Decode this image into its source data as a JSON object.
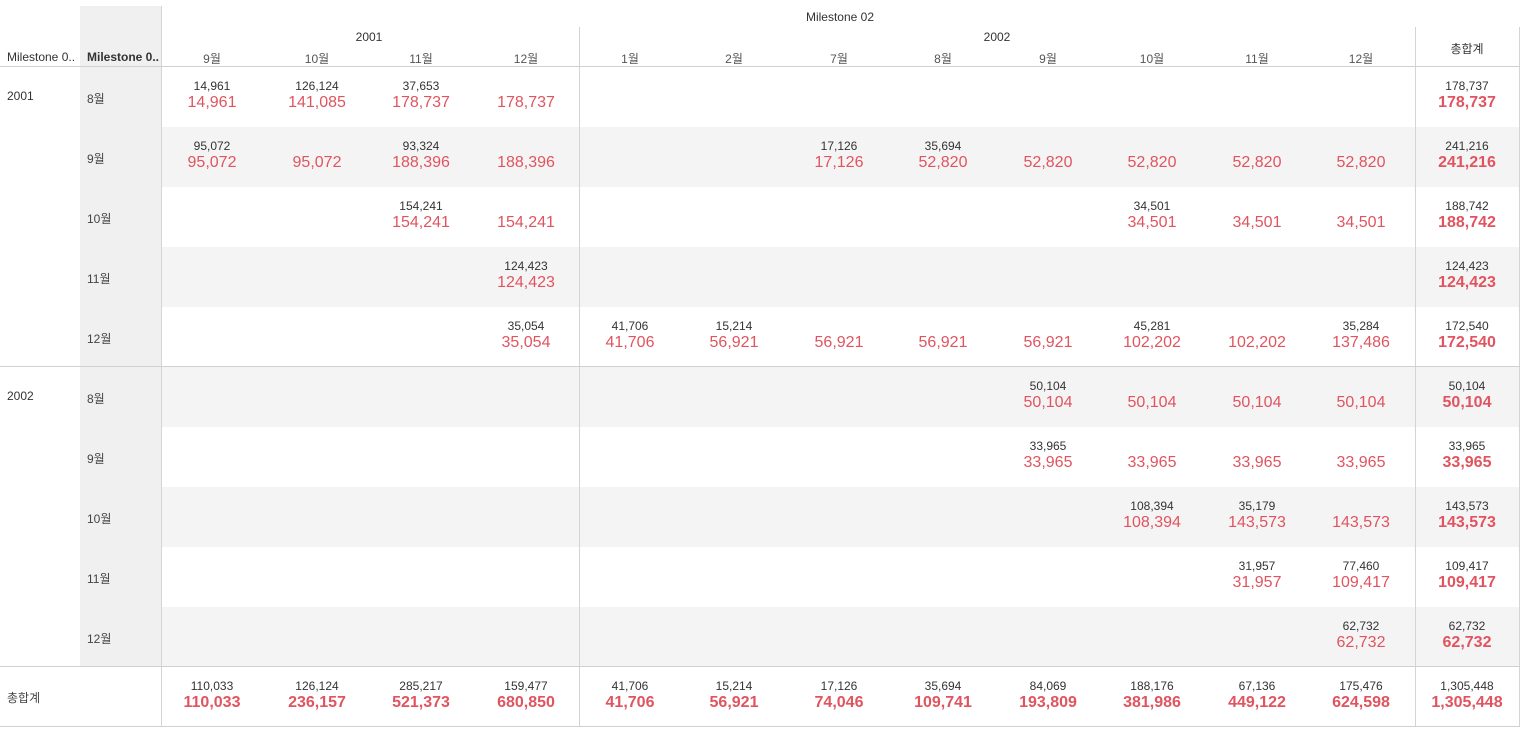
{
  "header": {
    "row_field_1": "Milestone 0..",
    "row_field_2": "Milestone 0..",
    "column_field": "Milestone 02",
    "col_years": [
      {
        "label": "2001"
      },
      {
        "label": "2002"
      }
    ],
    "col_months": [
      "9월",
      "10월",
      "11월",
      "12월",
      "1월",
      "2월",
      "7월",
      "8월",
      "9월",
      "10월",
      "11월",
      "12월"
    ],
    "grand_total_label": "총합계"
  },
  "rows": [
    {
      "year": "2001",
      "month": "8월",
      "cells": [
        [
          "14,961",
          "14,961"
        ],
        [
          "126,124",
          "141,085"
        ],
        [
          "37,653",
          "178,737"
        ],
        [
          "",
          "178,737"
        ],
        [
          "",
          ""
        ],
        [
          "",
          ""
        ],
        [
          "",
          ""
        ],
        [
          "",
          ""
        ],
        [
          "",
          ""
        ],
        [
          "",
          ""
        ],
        [
          "",
          ""
        ],
        [
          "",
          ""
        ]
      ],
      "total": [
        "178,737",
        "178,737"
      ]
    },
    {
      "year": "",
      "month": "9월",
      "cells": [
        [
          "95,072",
          "95,072"
        ],
        [
          "",
          "95,072"
        ],
        [
          "93,324",
          "188,396"
        ],
        [
          "",
          "188,396"
        ],
        [
          "",
          ""
        ],
        [
          "",
          ""
        ],
        [
          "17,126",
          "17,126"
        ],
        [
          "35,694",
          "52,820"
        ],
        [
          "",
          "52,820"
        ],
        [
          "",
          "52,820"
        ],
        [
          "",
          "52,820"
        ],
        [
          "",
          "52,820"
        ]
      ],
      "total": [
        "241,216",
        "241,216"
      ]
    },
    {
      "year": "",
      "month": "10월",
      "cells": [
        [
          "",
          ""
        ],
        [
          "",
          ""
        ],
        [
          "154,241",
          "154,241"
        ],
        [
          "",
          "154,241"
        ],
        [
          "",
          ""
        ],
        [
          "",
          ""
        ],
        [
          "",
          ""
        ],
        [
          "",
          ""
        ],
        [
          "",
          ""
        ],
        [
          "34,501",
          "34,501"
        ],
        [
          "",
          "34,501"
        ],
        [
          "",
          "34,501"
        ]
      ],
      "total": [
        "188,742",
        "188,742"
      ]
    },
    {
      "year": "",
      "month": "11월",
      "cells": [
        [
          "",
          ""
        ],
        [
          "",
          ""
        ],
        [
          "",
          ""
        ],
        [
          "124,423",
          "124,423"
        ],
        [
          "",
          ""
        ],
        [
          "",
          ""
        ],
        [
          "",
          ""
        ],
        [
          "",
          ""
        ],
        [
          "",
          ""
        ],
        [
          "",
          ""
        ],
        [
          "",
          ""
        ],
        [
          "",
          ""
        ]
      ],
      "total": [
        "124,423",
        "124,423"
      ]
    },
    {
      "year": "",
      "month": "12월",
      "cells": [
        [
          "",
          ""
        ],
        [
          "",
          ""
        ],
        [
          "",
          ""
        ],
        [
          "35,054",
          "35,054"
        ],
        [
          "41,706",
          "41,706"
        ],
        [
          "15,214",
          "56,921"
        ],
        [
          "",
          "56,921"
        ],
        [
          "",
          "56,921"
        ],
        [
          "",
          "56,921"
        ],
        [
          "45,281",
          "102,202"
        ],
        [
          "",
          "102,202"
        ],
        [
          "35,284",
          "137,486"
        ]
      ],
      "total": [
        "172,540",
        "172,540"
      ]
    },
    {
      "year": "2002",
      "month": "8월",
      "cells": [
        [
          "",
          ""
        ],
        [
          "",
          ""
        ],
        [
          "",
          ""
        ],
        [
          "",
          ""
        ],
        [
          "",
          ""
        ],
        [
          "",
          ""
        ],
        [
          "",
          ""
        ],
        [
          "",
          ""
        ],
        [
          "50,104",
          "50,104"
        ],
        [
          "",
          "50,104"
        ],
        [
          "",
          "50,104"
        ],
        [
          "",
          "50,104"
        ]
      ],
      "total": [
        "50,104",
        "50,104"
      ]
    },
    {
      "year": "",
      "month": "9월",
      "cells": [
        [
          "",
          ""
        ],
        [
          "",
          ""
        ],
        [
          "",
          ""
        ],
        [
          "",
          ""
        ],
        [
          "",
          ""
        ],
        [
          "",
          ""
        ],
        [
          "",
          ""
        ],
        [
          "",
          ""
        ],
        [
          "33,965",
          "33,965"
        ],
        [
          "",
          "33,965"
        ],
        [
          "",
          "33,965"
        ],
        [
          "",
          "33,965"
        ]
      ],
      "total": [
        "33,965",
        "33,965"
      ]
    },
    {
      "year": "",
      "month": "10월",
      "cells": [
        [
          "",
          ""
        ],
        [
          "",
          ""
        ],
        [
          "",
          ""
        ],
        [
          "",
          ""
        ],
        [
          "",
          ""
        ],
        [
          "",
          ""
        ],
        [
          "",
          ""
        ],
        [
          "",
          ""
        ],
        [
          "",
          ""
        ],
        [
          "108,394",
          "108,394"
        ],
        [
          "35,179",
          "143,573"
        ],
        [
          "",
          "143,573"
        ]
      ],
      "total": [
        "143,573",
        "143,573"
      ]
    },
    {
      "year": "",
      "month": "11월",
      "cells": [
        [
          "",
          ""
        ],
        [
          "",
          ""
        ],
        [
          "",
          ""
        ],
        [
          "",
          ""
        ],
        [
          "",
          ""
        ],
        [
          "",
          ""
        ],
        [
          "",
          ""
        ],
        [
          "",
          ""
        ],
        [
          "",
          ""
        ],
        [
          "",
          ""
        ],
        [
          "31,957",
          "31,957"
        ],
        [
          "77,460",
          "109,417"
        ]
      ],
      "total": [
        "109,417",
        "109,417"
      ]
    },
    {
      "year": "",
      "month": "12월",
      "cells": [
        [
          "",
          ""
        ],
        [
          "",
          ""
        ],
        [
          "",
          ""
        ],
        [
          "",
          ""
        ],
        [
          "",
          ""
        ],
        [
          "",
          ""
        ],
        [
          "",
          ""
        ],
        [
          "",
          ""
        ],
        [
          "",
          ""
        ],
        [
          "",
          ""
        ],
        [
          "",
          ""
        ],
        [
          "62,732",
          "62,732"
        ]
      ],
      "total": [
        "62,732",
        "62,732"
      ]
    }
  ],
  "grand_total_row": {
    "label": "총합계",
    "cells": [
      [
        "110,033",
        "110,033"
      ],
      [
        "126,124",
        "236,157"
      ],
      [
        "285,217",
        "521,373"
      ],
      [
        "159,477",
        "680,850"
      ],
      [
        "41,706",
        "41,706"
      ],
      [
        "15,214",
        "56,921"
      ],
      [
        "17,126",
        "74,046"
      ],
      [
        "35,694",
        "109,741"
      ],
      [
        "84,069",
        "193,809"
      ],
      [
        "188,176",
        "381,986"
      ],
      [
        "67,136",
        "449,122"
      ],
      [
        "175,476",
        "624,598"
      ]
    ],
    "total": [
      "1,305,448",
      "1,305,448"
    ]
  },
  "colors": {
    "accent": "#e0545f",
    "band": "#f4f4f4",
    "text": "#333333"
  }
}
